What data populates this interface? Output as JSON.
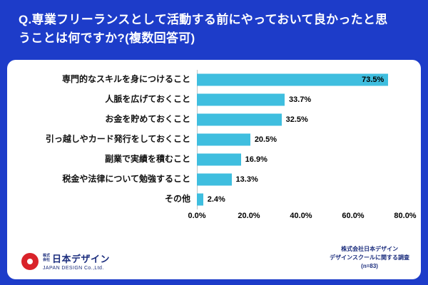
{
  "header": {
    "title_lines": [
      "Q.専業フリーランスとして活動する前にやっておいて良かったと思",
      "うことは何ですか?(複数回答可)"
    ]
  },
  "chart_data": {
    "type": "bar",
    "orientation": "horizontal",
    "title": "Q.専業フリーランスとして活動する前にやっておいて良かったと思うことは何ですか?(複数回答可)",
    "categories": [
      "専門的なスキルを身につけること",
      "人脈を広げておくこと",
      "お金を貯めておくこと",
      "引っ越しやカード発行をしておくこと",
      "副業で実績を積むこと",
      "税金や法律について勉強すること",
      "その他"
    ],
    "values": [
      73.5,
      33.7,
      32.5,
      20.5,
      16.9,
      13.3,
      2.4
    ],
    "value_labels": [
      "73.5%",
      "33.7%",
      "32.5%",
      "20.5%",
      "16.9%",
      "13.3%",
      "2.4%"
    ],
    "x_ticks": {
      "values": [
        0,
        20,
        40,
        60,
        80
      ],
      "labels": [
        "0.0%",
        "20.0%",
        "40.0%",
        "60.0%",
        "80.0%"
      ]
    },
    "xlim": [
      0,
      80
    ],
    "bar_color": "#3fbedf",
    "grid": false,
    "legend": false
  },
  "footer": {
    "logo": {
      "company_prefix": "株式会社",
      "name": "日本デザイン",
      "subtitle": "JAPAN DESIGN Co.,Ltd."
    },
    "source_lines": [
      "株式会社日本デザイン",
      "デザインスクールに関する調査",
      "(n=83)"
    ]
  },
  "colors": {
    "background": "#1d3cc9",
    "bar": "#3fbedf",
    "logo_red": "#d9232a",
    "navy_text": "#1b2d7d",
    "title_text": "#ffffff"
  }
}
